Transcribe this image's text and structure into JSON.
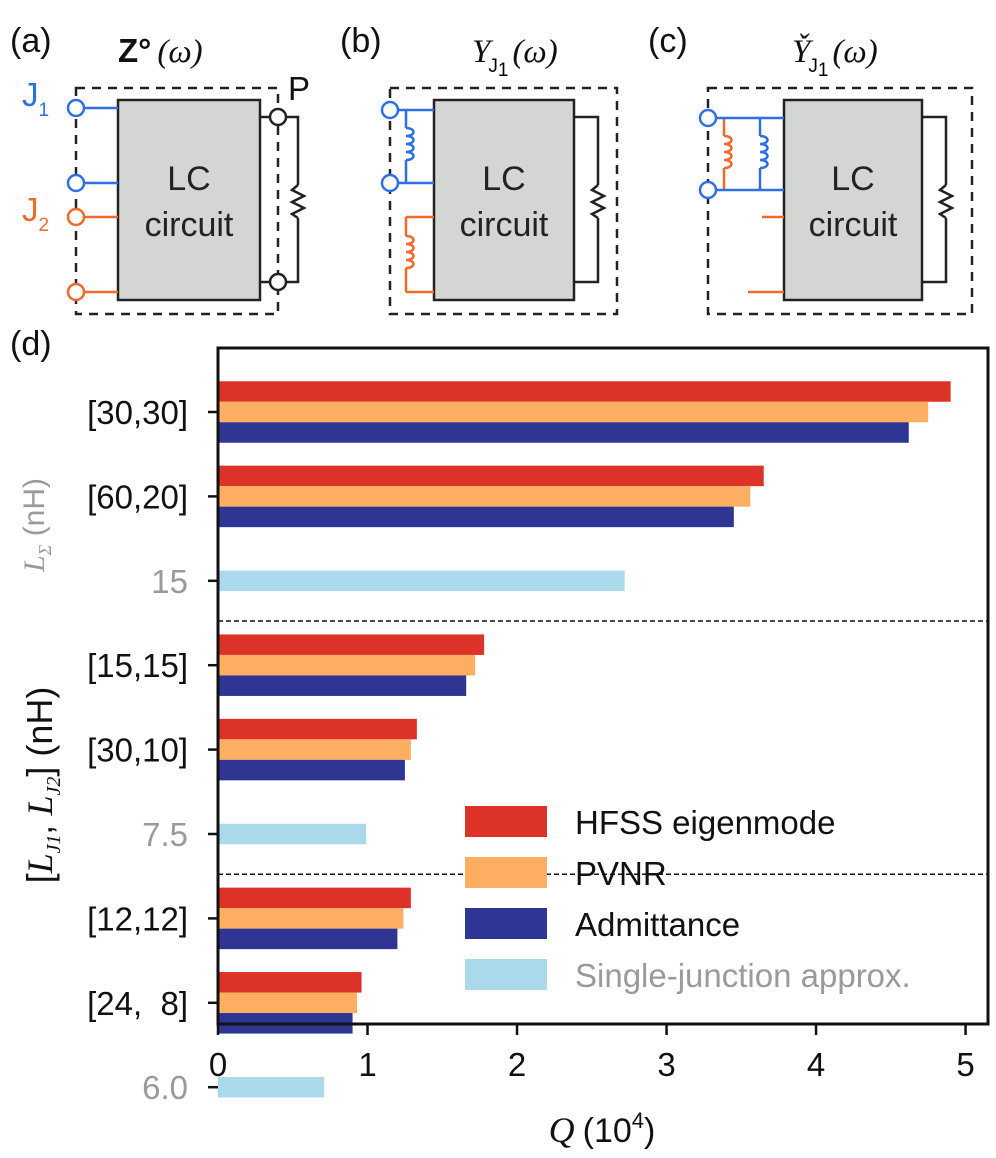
{
  "panels": {
    "a": {
      "letter": "(a)",
      "title_symbol": "Z°",
      "title_arg": "(ω)",
      "block_label_line1": "LC",
      "block_label_line2": "circuit",
      "port1_label": "J",
      "port1_sub": "1",
      "port2_label": "J",
      "port2_sub": "2",
      "probe_label": "P"
    },
    "b": {
      "letter": "(b)",
      "title_symbol": "Y",
      "title_sub": "J",
      "title_subsub": "1",
      "title_arg": "(ω)",
      "block_label_line1": "LC",
      "block_label_line2": "circuit"
    },
    "c": {
      "letter": "(c)",
      "title_symbol": "Y̌",
      "title_sub": "J",
      "title_subsub": "1",
      "title_arg": "(ω)",
      "block_label_line1": "LC",
      "block_label_line2": "circuit"
    },
    "d": {
      "letter": "(d)"
    }
  },
  "colors": {
    "j1_blue": "#2f6fe4",
    "j2_orange": "#f06a2a",
    "block_fill": "#d4d6d4",
    "hfss": "#dc3228",
    "pvnr": "#fdae61",
    "admittance": "#2f3592",
    "single": "#a9d9ea",
    "gray_text": "#9a9a9a"
  },
  "chart_data": {
    "type": "bar",
    "orientation": "horizontal",
    "xlabel": "Q (10⁴)",
    "xlim": [
      0,
      5.15
    ],
    "xticks": [
      "0",
      "1",
      "2",
      "3",
      "4",
      "5"
    ],
    "ylabel_main": "[L_J1, L_J2] (nH)",
    "ylabel_secondary": "L_Σ (nH)",
    "legend_position": "lower-right",
    "series": [
      {
        "name": "HFSS eigenmode",
        "color": "#dc3228"
      },
      {
        "name": "PVNR",
        "color": "#fdae61"
      },
      {
        "name": "Admittance",
        "color": "#2f3592"
      },
      {
        "name": "Single-junction approx.",
        "color": "#a9d9ea"
      }
    ],
    "groups": [
      {
        "label": "[30,30]",
        "gray": false,
        "values": [
          4.9,
          4.75,
          4.62
        ]
      },
      {
        "label": "[60,20]",
        "gray": false,
        "values": [
          3.65,
          3.56,
          3.45
        ]
      },
      {
        "label": "15",
        "gray": true,
        "values": [
          2.72
        ]
      },
      {
        "label": "[15,15]",
        "gray": false,
        "values": [
          1.78,
          1.72,
          1.66
        ]
      },
      {
        "label": "[30,10]",
        "gray": false,
        "values": [
          1.33,
          1.29,
          1.25
        ]
      },
      {
        "label": "7.5",
        "gray": true,
        "values": [
          0.99
        ]
      },
      {
        "label": "[12,12]",
        "gray": false,
        "values": [
          1.29,
          1.24,
          1.2
        ]
      },
      {
        "label": "[24,  8]",
        "gray": false,
        "values": [
          0.96,
          0.93,
          0.9
        ]
      },
      {
        "label": "6.0",
        "gray": true,
        "values": [
          0.71
        ]
      }
    ]
  }
}
